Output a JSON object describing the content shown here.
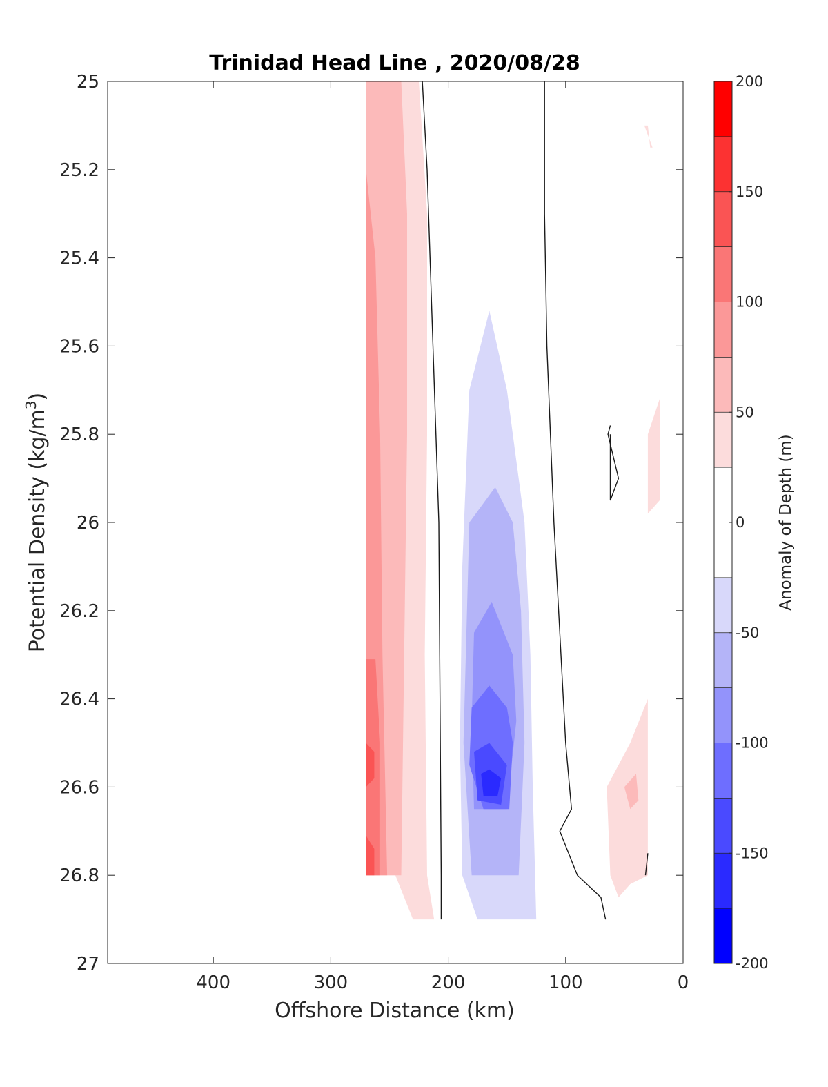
{
  "chart_data": {
    "type": "heatmap",
    "subtype": "filled-contour",
    "title": "Trinidad Head Line , 2020/08/28",
    "xlabel": "Offshore Distance (km)",
    "ylabel_main": "Potential Density (kg/m",
    "ylabel_sup": "3",
    "ylabel_tail": ")",
    "xlim": [
      0,
      490
    ],
    "x_reversed": true,
    "ylim": [
      25,
      27
    ],
    "y_reversed": true,
    "x_ticks": [
      400,
      300,
      200,
      100,
      0
    ],
    "x_tick_labels": [
      "400",
      "300",
      "200",
      "100",
      "0"
    ],
    "y_ticks": [
      25,
      25.2,
      25.4,
      25.6,
      25.8,
      26,
      26.2,
      26.4,
      26.6,
      26.8,
      27
    ],
    "y_tick_labels": [
      "25",
      "25.2",
      "25.4",
      "25.6",
      "25.8",
      "26",
      "26.2",
      "26.4",
      "26.6",
      "26.8",
      "27"
    ],
    "colorbar": {
      "label": "Anomaly of Depth (m)",
      "range": [
        -200,
        200
      ],
      "levels": [
        -200,
        -175,
        -150,
        -125,
        -100,
        -75,
        -50,
        -25,
        25,
        50,
        75,
        100,
        125,
        150,
        175,
        200
      ],
      "colors": [
        "#0000ff",
        "#2a2aff",
        "#4a4aff",
        "#6e6eff",
        "#9393fb",
        "#b4b4f8",
        "#d8d8fa",
        "#ffffff",
        "#fcdcdc",
        "#fcbaba",
        "#fb9898",
        "#fa7676",
        "#fa5454",
        "#fc3232",
        "#ff0000"
      ],
      "ticks": [
        200,
        150,
        100,
        50,
        0,
        -50,
        -100,
        -150,
        -200
      ],
      "tick_labels": [
        "200",
        "150",
        "100",
        "50",
        "0",
        "-50",
        "-100",
        "-150",
        "-200"
      ]
    },
    "contour_regions": [
      {
        "level": 25,
        "points": [
          [
            270,
            25
          ],
          [
            225,
            25
          ],
          [
            218,
            25.3
          ],
          [
            218,
            25.8
          ],
          [
            220,
            26.3
          ],
          [
            218,
            26.8
          ],
          [
            212,
            26.9
          ],
          [
            230,
            26.9
          ],
          [
            245,
            26.8
          ],
          [
            270,
            26.8
          ]
        ]
      },
      {
        "level": 50,
        "points": [
          [
            270,
            25
          ],
          [
            240,
            25
          ],
          [
            235,
            25.3
          ],
          [
            235,
            25.8
          ],
          [
            238,
            26.4
          ],
          [
            240,
            26.8
          ],
          [
            245,
            26.8
          ],
          [
            270,
            26.8
          ]
        ]
      },
      {
        "level": 75,
        "points": [
          [
            270,
            25.2
          ],
          [
            262,
            25.4
          ],
          [
            258,
            25.8
          ],
          [
            256,
            26.3
          ],
          [
            252,
            26.8
          ],
          [
            270,
            26.8
          ]
        ]
      },
      {
        "level": 100,
        "points": [
          [
            270,
            26.31
          ],
          [
            262,
            26.31
          ],
          [
            258,
            26.5
          ],
          [
            258,
            26.8
          ],
          [
            270,
            26.8
          ]
        ]
      },
      {
        "level": 125,
        "points": [
          [
            270,
            26.5
          ],
          [
            263,
            26.52
          ],
          [
            263,
            26.58
          ],
          [
            270,
            26.6
          ]
        ]
      },
      {
        "level": 125,
        "points": [
          [
            270,
            26.71
          ],
          [
            263,
            26.74
          ],
          [
            263,
            26.8
          ],
          [
            270,
            26.8
          ]
        ]
      },
      {
        "level": -25,
        "points": [
          [
            200,
            25
          ],
          [
            135,
            25
          ],
          [
            125,
            25.3
          ],
          [
            115,
            26.0
          ],
          [
            105,
            26.5
          ],
          [
            102,
            26.9
          ],
          [
            195,
            26.9
          ],
          [
            193,
            26.5
          ],
          [
            195,
            26.0
          ],
          [
            200,
            25.6
          ],
          [
            202,
            25.3
          ]
        ]
      },
      {
        "level": -50,
        "points": [
          [
            165,
            25.52
          ],
          [
            182,
            25.7
          ],
          [
            188,
            26.1
          ],
          [
            190,
            26.5
          ],
          [
            188,
            26.8
          ],
          [
            175,
            26.9
          ],
          [
            125,
            26.9
          ],
          [
            128,
            26.6
          ],
          [
            130,
            26.3
          ],
          [
            135,
            26.0
          ],
          [
            150,
            25.7
          ]
        ]
      },
      {
        "level": -75,
        "points": [
          [
            160,
            25.92
          ],
          [
            182,
            26.0
          ],
          [
            185,
            26.3
          ],
          [
            187,
            26.5
          ],
          [
            180,
            26.8
          ],
          [
            140,
            26.8
          ],
          [
            135,
            26.5
          ],
          [
            138,
            26.2
          ],
          [
            145,
            26.0
          ]
        ]
      },
      {
        "level": -100,
        "points": [
          [
            163,
            26.18
          ],
          [
            178,
            26.25
          ],
          [
            180,
            26.45
          ],
          [
            178,
            26.65
          ],
          [
            150,
            26.65
          ],
          [
            142,
            26.45
          ],
          [
            145,
            26.3
          ]
        ]
      },
      {
        "level": -125,
        "points": [
          [
            165,
            26.37
          ],
          [
            180,
            26.42
          ],
          [
            182,
            26.55
          ],
          [
            170,
            26.65
          ],
          [
            148,
            26.65
          ],
          [
            145,
            26.5
          ],
          [
            150,
            26.42
          ]
        ]
      },
      {
        "level": -150,
        "points": [
          [
            165,
            26.5
          ],
          [
            178,
            26.52
          ],
          [
            175,
            26.63
          ],
          [
            155,
            26.64
          ],
          [
            150,
            26.55
          ]
        ]
      },
      {
        "level": -175,
        "points": [
          [
            165,
            26.56
          ],
          [
            172,
            26.57
          ],
          [
            170,
            26.62
          ],
          [
            158,
            26.62
          ],
          [
            155,
            26.58
          ]
        ]
      },
      {
        "level": 25,
        "points": [
          [
            65,
            26.6
          ],
          [
            55,
            26.55
          ],
          [
            45,
            26.5
          ],
          [
            30,
            26.4
          ],
          [
            30,
            26.8
          ],
          [
            45,
            26.82
          ],
          [
            55,
            26.85
          ],
          [
            62,
            26.8
          ]
        ]
      },
      {
        "level": 50,
        "points": [
          [
            50,
            26.6
          ],
          [
            40,
            26.57
          ],
          [
            38,
            26.63
          ],
          [
            45,
            26.65
          ]
        ]
      },
      {
        "level": 25,
        "points": [
          [
            30,
            25.8
          ],
          [
            20,
            25.72
          ],
          [
            20,
            25.95
          ],
          [
            30,
            25.98
          ]
        ]
      },
      {
        "level": 25,
        "points": [
          [
            33,
            25.1
          ],
          [
            30,
            25.1
          ],
          [
            28,
            25.15
          ],
          [
            26,
            25.15
          ]
        ]
      }
    ],
    "zero_contours": [
      [
        [
          222,
          25
        ],
        [
          218,
          25.2
        ],
        [
          213,
          25.6
        ],
        [
          208,
          26.0
        ],
        [
          207,
          26.4
        ],
        [
          206,
          26.8
        ],
        [
          206,
          26.9
        ]
      ],
      [
        [
          118,
          25
        ],
        [
          118,
          25.3
        ],
        [
          116,
          25.6
        ],
        [
          110,
          26.0
        ],
        [
          100,
          26.5
        ],
        [
          95,
          26.65
        ],
        [
          105,
          26.7
        ],
        [
          90,
          26.8
        ],
        [
          70,
          26.85
        ],
        [
          66,
          26.9
        ]
      ],
      [
        [
          62,
          25.78
        ],
        [
          64,
          25.8
        ],
        [
          55,
          25.9
        ],
        [
          62,
          25.95
        ],
        [
          62,
          25.8
        ]
      ],
      [
        [
          30,
          26.75
        ],
        [
          32,
          26.8
        ]
      ]
    ]
  }
}
